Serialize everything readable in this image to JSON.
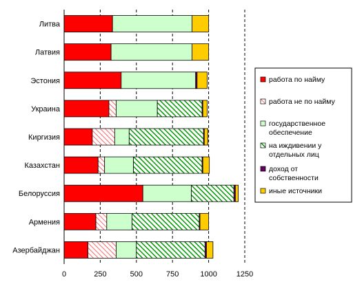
{
  "chart_data": {
    "type": "bar",
    "orientation": "horizontal",
    "stacked": true,
    "categories": [
      "Литва",
      "Латвия",
      "Эстония",
      "Украина",
      "Киргизия",
      "Казахстан",
      "Белоруссия",
      "Армения",
      "Азербайджан"
    ],
    "series": [
      {
        "name": "работа по найму",
        "color": "#ff0000",
        "pattern": "solid",
        "values": [
          335,
          325,
          395,
          310,
          195,
          235,
          545,
          220,
          165
        ]
      },
      {
        "name": "работа не по найму",
        "color": "#ff9999",
        "pattern": "hatch-light",
        "values": [
          0,
          0,
          0,
          50,
          155,
          45,
          0,
          75,
          195
        ]
      },
      {
        "name": "государственное обеспечение",
        "color": "#ccffcc",
        "pattern": "solid",
        "values": [
          550,
          560,
          515,
          285,
          100,
          200,
          335,
          175,
          140
        ]
      },
      {
        "name": "на иждивении у отдельных лиц",
        "color": "#009900",
        "pattern": "hatch-dark",
        "values": [
          0,
          0,
          0,
          310,
          515,
          475,
          295,
          465,
          475
        ]
      },
      {
        "name": "доход от собственности",
        "color": "#660066",
        "pattern": "solid",
        "values": [
          0,
          0,
          10,
          5,
          5,
          5,
          10,
          5,
          10
        ]
      },
      {
        "name": "иные источники",
        "color": "#ffcc00",
        "pattern": "solid",
        "values": [
          115,
          115,
          70,
          30,
          25,
          45,
          20,
          60,
          45
        ]
      }
    ],
    "xlim": [
      0,
      1250
    ],
    "x_ticks": [
      "0",
      "250",
      "500",
      "750",
      "1000",
      "1250"
    ],
    "grid": "vertical-dashed",
    "legend": "right"
  }
}
